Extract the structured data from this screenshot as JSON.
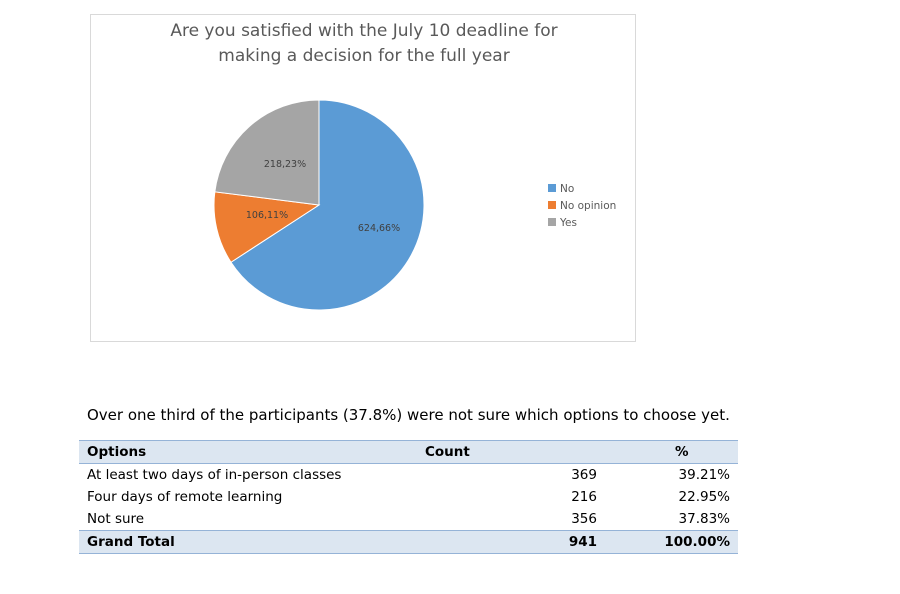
{
  "chart_data": {
    "type": "pie",
    "title_lines": [
      "Are you satisfied with the July 10 deadline for",
      "making a decision for the full year"
    ],
    "slices": [
      {
        "name": "No",
        "value": 624,
        "percent": 66,
        "label": "624,66%",
        "color": "#5b9bd5"
      },
      {
        "name": "No opinion",
        "value": 106,
        "percent": 11,
        "label": "106,11%",
        "color": "#ed7d31"
      },
      {
        "name": "Yes",
        "value": 218,
        "percent": 23,
        "label": "218,23%",
        "color": "#a5a5a5"
      }
    ],
    "legend_position": "right"
  },
  "summary": "Over one third of the participants (37.8%) were not sure which options to choose yet.",
  "table": {
    "headers": [
      "Options",
      "Count",
      "%"
    ],
    "rows": [
      [
        "At least two days of in-person classes",
        "369",
        "39.21%"
      ],
      [
        "Four days of remote learning",
        "216",
        "22.95%"
      ],
      [
        "Not sure",
        "356",
        "37.83%"
      ]
    ],
    "total": [
      "Grand Total",
      "941",
      "100.00%"
    ]
  }
}
